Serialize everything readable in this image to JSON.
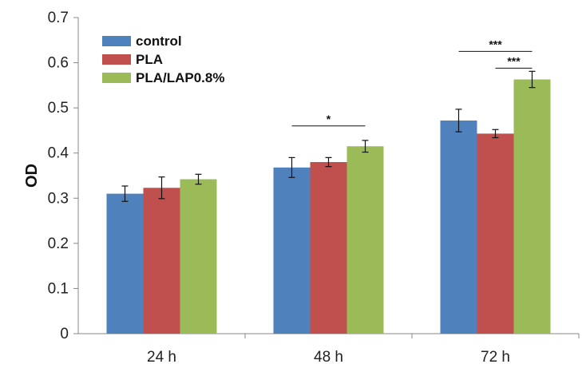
{
  "chart_data": {
    "type": "bar",
    "title": "",
    "xlabel": "",
    "ylabel": "OD",
    "ylim": [
      0,
      0.7
    ],
    "yticks": [
      "0",
      "0.1",
      "0.2",
      "0.3",
      "0.4",
      "0.5",
      "0.6",
      "0.7"
    ],
    "categories": [
      "24 h",
      "48 h",
      "72 h"
    ],
    "series": [
      {
        "name": "control",
        "color": "#4F81BD",
        "values": [
          0.31,
          0.368,
          0.472
        ],
        "errors": [
          0.017,
          0.022,
          0.025
        ]
      },
      {
        "name": "PLA",
        "color": "#C0504D",
        "values": [
          0.323,
          0.38,
          0.443
        ],
        "errors": [
          0.024,
          0.01,
          0.009
        ]
      },
      {
        "name": "PLA/LAP0.8%",
        "color": "#9BBB59",
        "values": [
          0.342,
          0.415,
          0.563
        ],
        "errors": [
          0.011,
          0.013,
          0.018
        ]
      }
    ],
    "legend_position": "top-left",
    "grid": false,
    "annotations": [
      {
        "category": "48 h",
        "from_series": 0,
        "to_series": 2,
        "label": "*",
        "level": 0.46
      },
      {
        "category": "72 h",
        "from_series": 0,
        "to_series": 2,
        "label": "***",
        "level": 0.625
      },
      {
        "category": "72 h",
        "from_series": 1,
        "to_series": 2,
        "label": "***",
        "level": 0.588
      }
    ]
  }
}
